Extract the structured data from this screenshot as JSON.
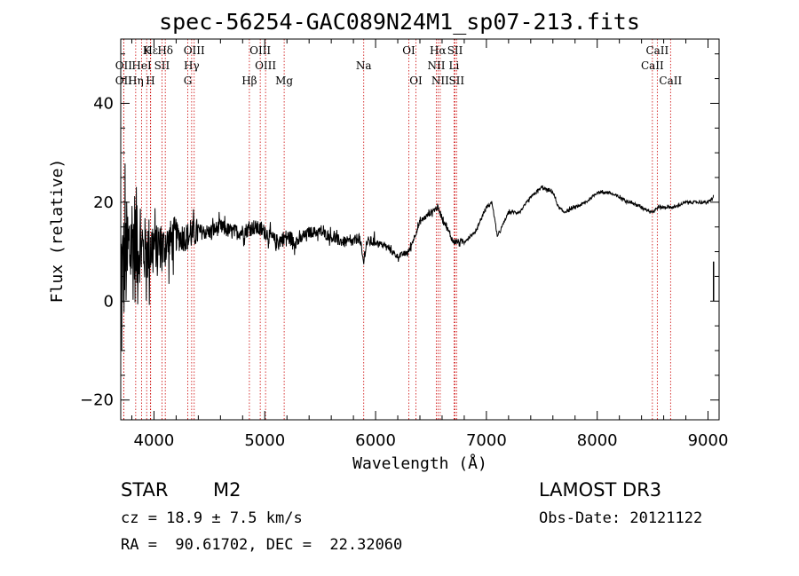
{
  "chart_data": {
    "type": "line",
    "title": "spec-56254-GAC089N24M1_sp07-213.fits",
    "xlabel": "Wavelength (Å)",
    "ylabel": "Flux (relative)",
    "xlim": [
      3700,
      9100
    ],
    "ylim": [
      -24,
      53
    ],
    "x_ticks": [
      4000,
      5000,
      6000,
      7000,
      8000,
      9000
    ],
    "x_tick_labels": [
      "4000",
      "5000",
      "6000",
      "7000",
      "8000",
      "9000"
    ],
    "y_ticks": [
      -20,
      0,
      20,
      40
    ],
    "y_tick_labels": [
      "−20",
      "0",
      "20",
      "40"
    ],
    "line_color": "#000000",
    "marker_color": "#cc0000",
    "spectrum_anchors": {
      "wavelength": [
        3700,
        3800,
        3900,
        4000,
        4100,
        4200,
        4300,
        4400,
        4500,
        4600,
        4700,
        4800,
        4900,
        5000,
        5100,
        5200,
        5300,
        5400,
        5500,
        5600,
        5700,
        5800,
        5850,
        5890,
        5920,
        6000,
        6100,
        6200,
        6300,
        6400,
        6500,
        6560,
        6600,
        6700,
        6800,
        6900,
        7000,
        7050,
        7100,
        7200,
        7300,
        7400,
        7500,
        7600,
        7650,
        7700,
        7800,
        7900,
        8000,
        8100,
        8200,
        8300,
        8400,
        8500,
        8550,
        8600,
        8700,
        8800,
        8900,
        9000,
        9050
      ],
      "flux": [
        5,
        12,
        10,
        11,
        11,
        13,
        13,
        14,
        14,
        15,
        14,
        14,
        15,
        14,
        12,
        13,
        12,
        14,
        14,
        13,
        12,
        12,
        13,
        8,
        12,
        12,
        11,
        9,
        10,
        16,
        18,
        19,
        17,
        12,
        12,
        14,
        19,
        20,
        13,
        18,
        18,
        21,
        23,
        22,
        19,
        18,
        19,
        20,
        22,
        22,
        21,
        20,
        19,
        18,
        19,
        19,
        19,
        20,
        20,
        20,
        21
      ]
    },
    "noise_amplitude_blue_end": "large below 4400 Å, moderate 4400–6000 Å, small above 6800 Å",
    "line_markers": [
      {
        "label": "Hε",
        "x": 3970,
        "row": 1
      },
      {
        "label": "K",
        "x": 3934,
        "row": 1
      },
      {
        "label": "Hδ",
        "x": 4102,
        "row": 1
      },
      {
        "label": "OIII",
        "x": 4363,
        "row": 1
      },
      {
        "label": "OIII",
        "x": 4959,
        "row": 1
      },
      {
        "label": "OI",
        "x": 6300,
        "row": 1
      },
      {
        "label": "Hα",
        "x": 6563,
        "row": 1
      },
      {
        "label": "SII",
        "x": 6717,
        "row": 1
      },
      {
        "label": "CaII",
        "x": 8542,
        "row": 1
      },
      {
        "label": "OII",
        "x": 3727,
        "row": 2
      },
      {
        "label": "HeI",
        "x": 3889,
        "row": 2
      },
      {
        "label": "SII",
        "x": 4072,
        "row": 2
      },
      {
        "label": "Hγ",
        "x": 4340,
        "row": 2
      },
      {
        "label": "OIII",
        "x": 5007,
        "row": 2
      },
      {
        "label": "Na",
        "x": 5893,
        "row": 2
      },
      {
        "label": "NII",
        "x": 6548,
        "row": 2
      },
      {
        "label": "Li",
        "x": 6708,
        "row": 2
      },
      {
        "label": "CaII",
        "x": 8498,
        "row": 2
      },
      {
        "label": "OII",
        "x": 3727,
        "row": 3
      },
      {
        "label": "Hη",
        "x": 3835,
        "row": 3
      },
      {
        "label": "H",
        "x": 3968,
        "row": 3
      },
      {
        "label": "G",
        "x": 4305,
        "row": 3
      },
      {
        "label": "Hβ",
        "x": 4861,
        "row": 3
      },
      {
        "label": "Mg",
        "x": 5175,
        "row": 3
      },
      {
        "label": "OI",
        "x": 6364,
        "row": 3
      },
      {
        "label": "NII",
        "x": 6583,
        "row": 3
      },
      {
        "label": "SII",
        "x": 6731,
        "row": 3
      },
      {
        "label": "CaII",
        "x": 8662,
        "row": 3
      }
    ]
  },
  "info": {
    "object_type": "STAR",
    "subclass": "M2",
    "survey": "LAMOST DR3",
    "redshift_line": "cz = 18.9 ± 7.5 km/s",
    "obs_date_line": "Obs-Date: 20121122",
    "coords_line": "RA =  90.61702, DEC =  22.32060"
  }
}
